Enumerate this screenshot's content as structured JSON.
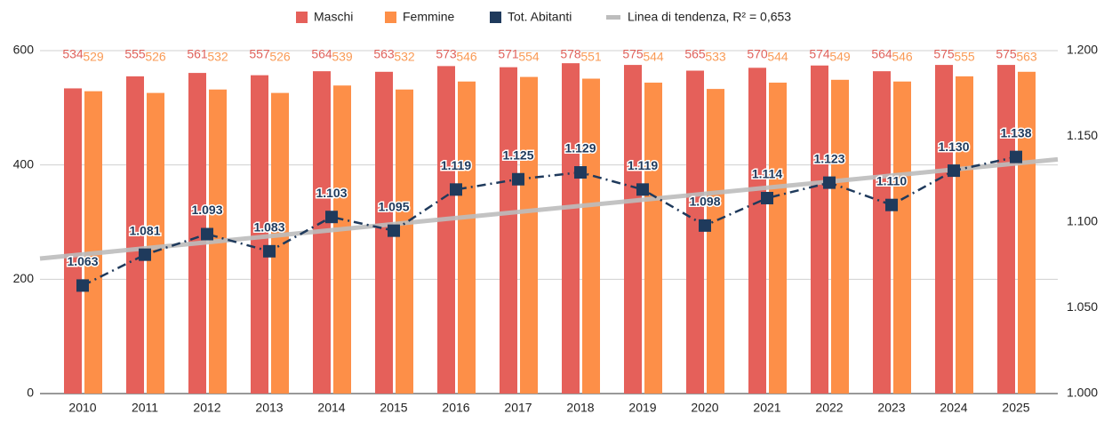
{
  "chart_data": {
    "type": "bar_line",
    "categories": [
      "2010",
      "2011",
      "2012",
      "2013",
      "2014",
      "2015",
      "2016",
      "2017",
      "2018",
      "2019",
      "2020",
      "2021",
      "2022",
      "2023",
      "2024",
      "2025"
    ],
    "series": [
      {
        "name": "Maschi",
        "color": "#e5605a",
        "label_color": "#e0625c",
        "values": [
          534,
          555,
          561,
          557,
          564,
          563,
          573,
          571,
          578,
          575,
          565,
          570,
          574,
          564,
          575,
          575
        ]
      },
      {
        "name": "Femmine",
        "color": "#fd8f48",
        "label_color": "#f99a55",
        "values": [
          529,
          526,
          532,
          526,
          539,
          532,
          546,
          554,
          551,
          544,
          533,
          544,
          549,
          546,
          555,
          563
        ]
      },
      {
        "name": "Tot. Abitanti",
        "color": "#1f3a5c",
        "axis": "y2",
        "values": [
          1063,
          1081,
          1093,
          1083,
          1103,
          1095,
          1119,
          1125,
          1129,
          1119,
          1098,
          1114,
          1123,
          1110,
          1130,
          1138
        ],
        "value_labels": [
          "1.063",
          "1.081",
          "1.093",
          "1.083",
          "1.103",
          "1.095",
          "1.119",
          "1.125",
          "1.129",
          "1.119",
          "1.098",
          "1.114",
          "1.123",
          "1.110",
          "1.130",
          "1.138"
        ]
      }
    ],
    "trendline": {
      "name": "Linea di tendenza, R² = 0,653",
      "color": "#bdbdbd"
    },
    "ylim": [
      0,
      600
    ],
    "yticks": [
      0,
      200,
      400,
      600
    ],
    "y2lim": [
      1000,
      1200
    ],
    "y2ticks": [
      {
        "value": 1000,
        "label": "1.000"
      },
      {
        "value": 1050,
        "label": "1.050"
      },
      {
        "value": 1100,
        "label": "1.100"
      },
      {
        "value": 1150,
        "label": "1.150"
      },
      {
        "value": 1200,
        "label": "1.200"
      }
    ],
    "grid": true
  }
}
